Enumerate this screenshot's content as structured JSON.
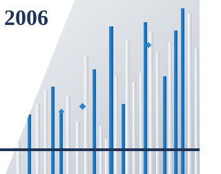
{
  "header": {
    "title": "2006"
  }
}
